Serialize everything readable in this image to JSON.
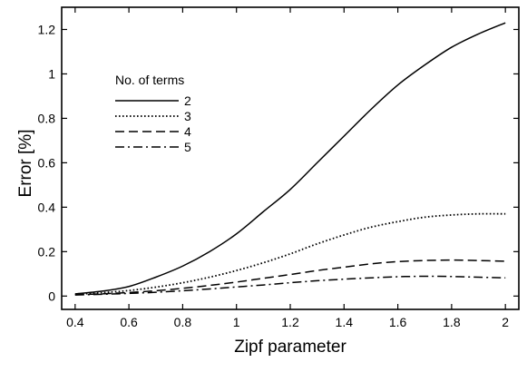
{
  "chart_data": {
    "type": "line",
    "xlabel": "Zipf parameter",
    "ylabel": "Error [%]",
    "xlim": [
      0.35,
      2.05
    ],
    "ylim": [
      -0.06,
      1.3
    ],
    "x_ticks": [
      0.4,
      0.6,
      0.8,
      1.0,
      1.2,
      1.4,
      1.6,
      1.8,
      2.0
    ],
    "x_tick_labels": [
      "0.4",
      "0.6",
      "0.8",
      "1",
      "1.2",
      "1.4",
      "1.6",
      "1.8",
      "2"
    ],
    "y_ticks": [
      0,
      0.2,
      0.4,
      0.6,
      0.8,
      1.0,
      1.2
    ],
    "y_tick_labels": [
      "0",
      "0.2",
      "0.4",
      "0.6",
      "0.8",
      "1",
      "1.2"
    ],
    "grid": false,
    "legend_title": "No. of terms",
    "legend_position": "upper-left",
    "series": [
      {
        "name": "2",
        "dash": "solid",
        "x": [
          0.4,
          0.5,
          0.6,
          0.7,
          0.8,
          0.9,
          1.0,
          1.1,
          1.2,
          1.3,
          1.4,
          1.5,
          1.6,
          1.7,
          1.8,
          1.9,
          2.0
        ],
        "y": [
          0.01,
          0.022,
          0.043,
          0.085,
          0.135,
          0.2,
          0.28,
          0.38,
          0.48,
          0.6,
          0.72,
          0.84,
          0.95,
          1.04,
          1.12,
          1.18,
          1.23
        ]
      },
      {
        "name": "3",
        "dash": "dotted",
        "x": [
          0.4,
          0.5,
          0.6,
          0.7,
          0.8,
          0.9,
          1.0,
          1.1,
          1.2,
          1.3,
          1.4,
          1.5,
          1.6,
          1.7,
          1.8,
          1.9,
          2.0
        ],
        "y": [
          0.008,
          0.015,
          0.025,
          0.04,
          0.06,
          0.085,
          0.115,
          0.15,
          0.19,
          0.235,
          0.275,
          0.31,
          0.335,
          0.355,
          0.365,
          0.37,
          0.37
        ]
      },
      {
        "name": "4",
        "dash": "dashed",
        "x": [
          0.4,
          0.5,
          0.6,
          0.7,
          0.8,
          0.9,
          1.0,
          1.1,
          1.2,
          1.3,
          1.4,
          1.5,
          1.6,
          1.7,
          1.8,
          1.9,
          2.0
        ],
        "y": [
          0.006,
          0.01,
          0.016,
          0.024,
          0.035,
          0.048,
          0.063,
          0.08,
          0.097,
          0.115,
          0.13,
          0.145,
          0.155,
          0.16,
          0.162,
          0.16,
          0.157
        ]
      },
      {
        "name": "5",
        "dash": "dashdot",
        "x": [
          0.4,
          0.5,
          0.6,
          0.7,
          0.8,
          0.9,
          1.0,
          1.1,
          1.2,
          1.3,
          1.4,
          1.5,
          1.6,
          1.7,
          1.8,
          1.9,
          2.0
        ],
        "y": [
          0.005,
          0.008,
          0.012,
          0.017,
          0.024,
          0.032,
          0.041,
          0.05,
          0.06,
          0.069,
          0.076,
          0.082,
          0.087,
          0.089,
          0.088,
          0.085,
          0.082
        ]
      }
    ]
  }
}
